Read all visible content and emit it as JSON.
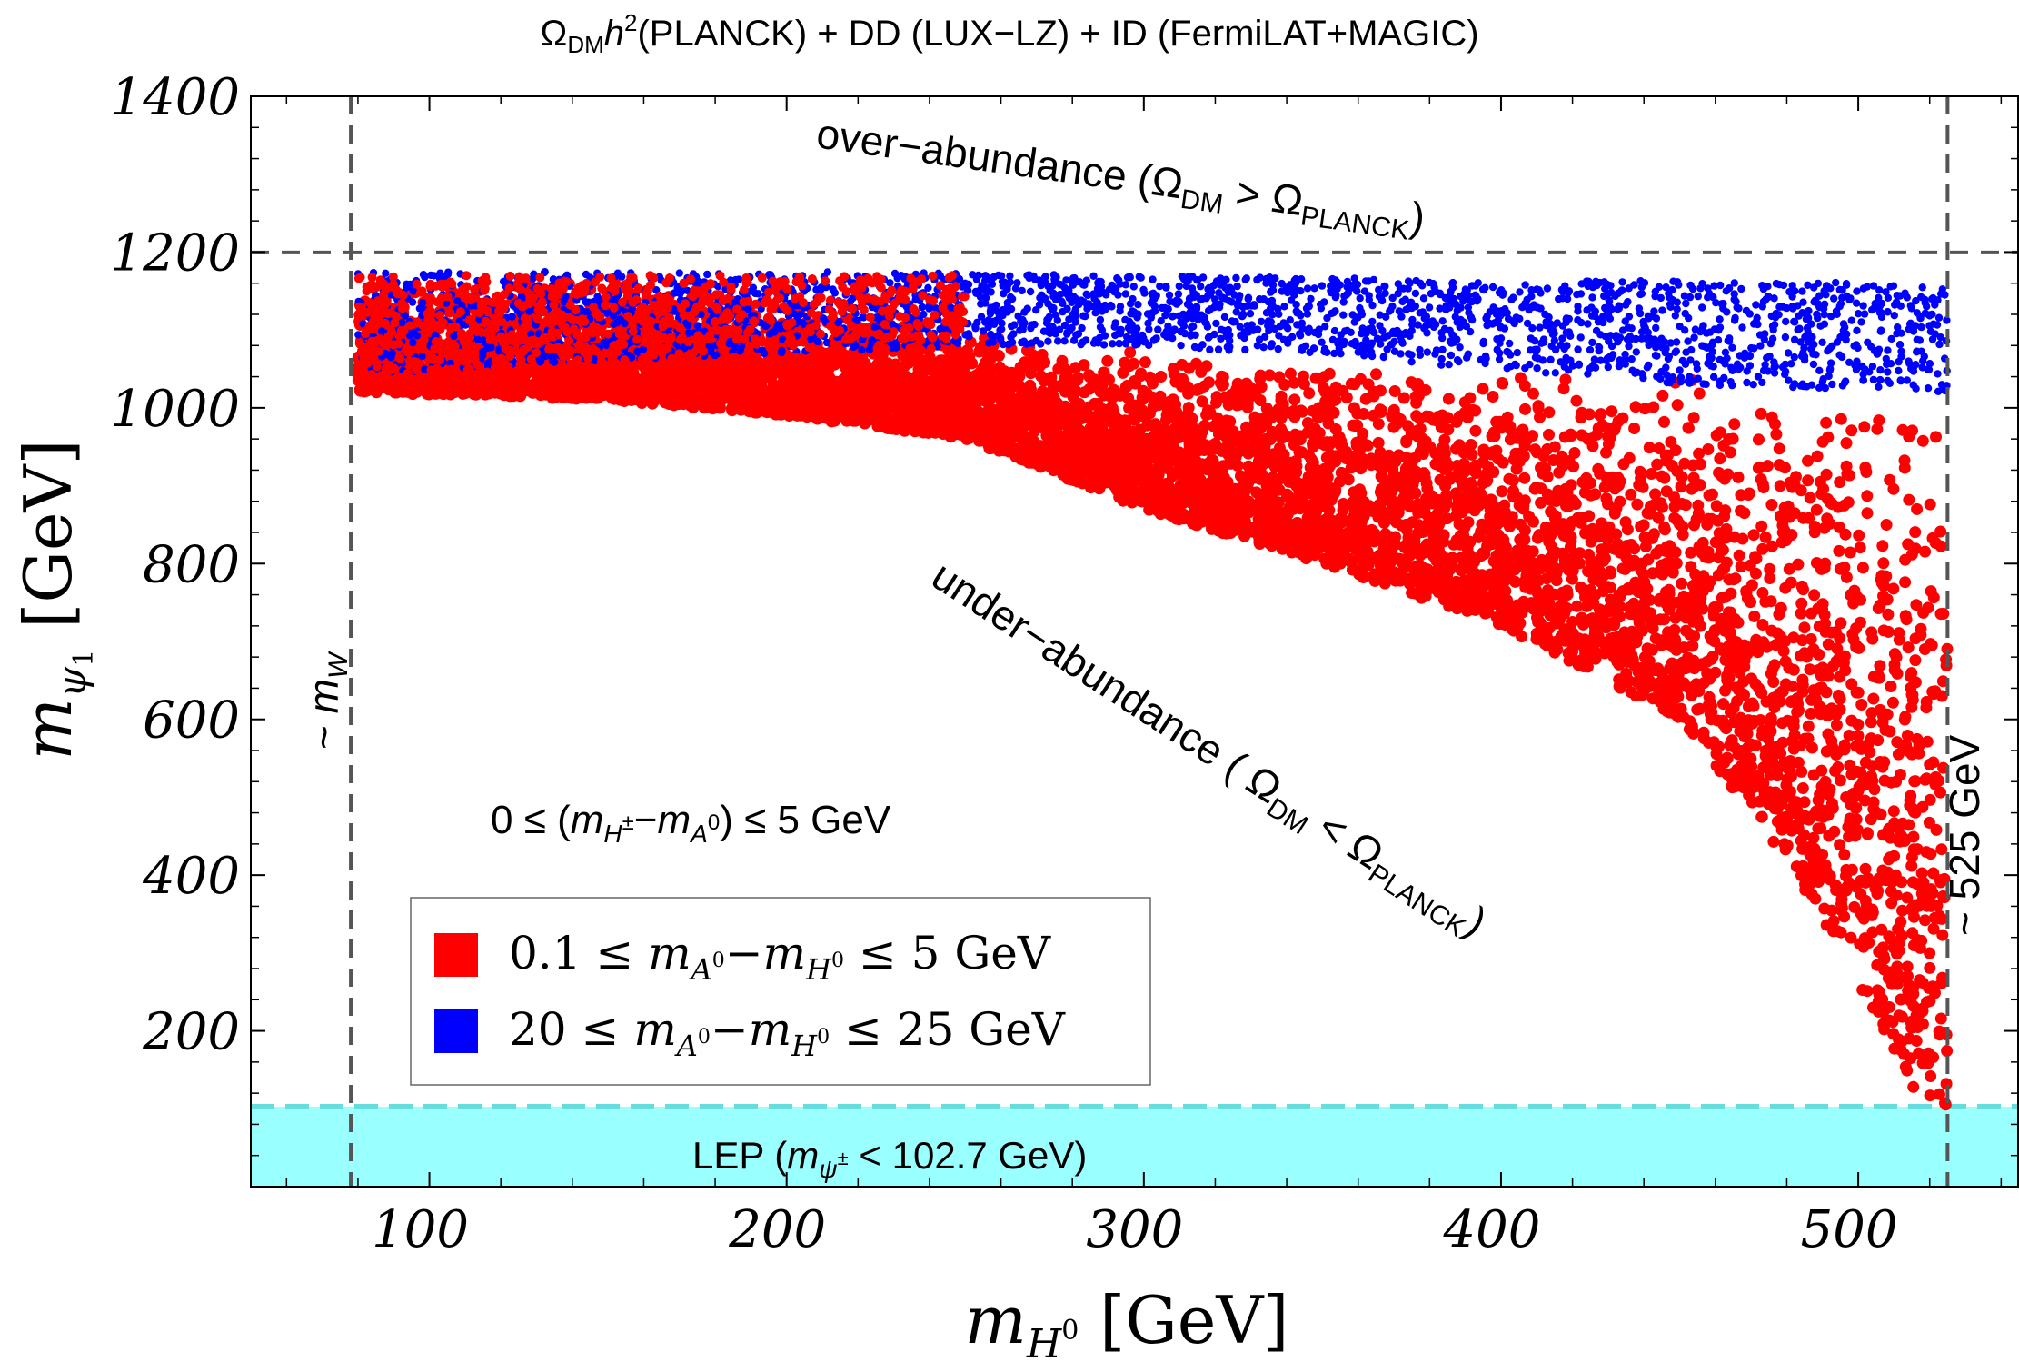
{
  "chart_data": {
    "type": "scatter",
    "title": "Ω_DM h²(PLANCK) + DD (LUX-LZ) + ID (FermiLAT+MAGIC)",
    "title_parts": {
      "omega": "Ω",
      "omega_sub": "DM",
      "h": "h",
      "h_sup": "2",
      "rest": "(PLANCK) + DD (LUX−LZ) + ID (FermiLAT+MAGIC)"
    },
    "xlabel": "m_H0 [GeV]",
    "xlabel_parts": {
      "m": "m",
      "sub": "H",
      "subsup": "0",
      "unit": " [GeV]"
    },
    "ylabel": "m_ψ1 [GeV]",
    "ylabel_parts": {
      "m": "m",
      "sub": "ψ",
      "subsub": "1",
      "unit": " [GeV]"
    },
    "xlim": [
      50,
      545
    ],
    "ylim": [
      0,
      1400
    ],
    "xticks": [
      100,
      200,
      300,
      400,
      500
    ],
    "yticks": [
      200,
      400,
      600,
      800,
      1000,
      1200,
      1400
    ],
    "xtick_labels": [
      "100",
      "200",
      "300",
      "400",
      "500"
    ],
    "ytick_labels": [
      "200",
      "400",
      "600",
      "800",
      "1000",
      "1200",
      "1400"
    ],
    "reference_lines": {
      "planck_y": 1200,
      "mw_x": 78,
      "upper_x": 525,
      "lep_y": 102.7
    },
    "annotations": {
      "over_abundance": {
        "text_main": "over−abundance (Ω",
        "sub1": "DM",
        "text_mid": " > Ω",
        "sub2": "PLANCK",
        "text_end": ")"
      },
      "under_abundance": {
        "text_main": "under−abundance ( Ω",
        "sub1": "DM",
        "text_mid": " < Ω",
        "sub2": "PLANCK",
        "text_end": ")"
      },
      "mw": {
        "tilde": "~ ",
        "m": "m",
        "sub": "W"
      },
      "upper": "~ 525 GeV",
      "constraint": {
        "prefix": "0 ≤ (",
        "m1": "m",
        "sub1": "H",
        "sup1": "±",
        "minus": "−",
        "m2": "m",
        "sub2": "A",
        "sup2": "0",
        "suffix": ") ≤ 5 GeV"
      },
      "lep": {
        "prefix": "LEP (",
        "m": "m",
        "sub": "ψ",
        "sup": "±",
        "suffix": " < 102.7 GeV)"
      }
    },
    "series": [
      {
        "name": "0.1 ≤ m_A0 − m_H0 ≤ 5 GeV",
        "color": "#ff0000",
        "legend": {
          "pre": "0.1 ≤ ",
          "m1": "m",
          "s1": "A",
          "p1": "0",
          "minus": "−",
          "m2": "m",
          "s2": "H",
          "p2": "0",
          "post": " ≤ 5 GeV"
        },
        "upper_envelope": [
          [
            80,
            1150
          ],
          [
            150,
            1170
          ],
          [
            250,
            1100
          ],
          [
            350,
            1050
          ],
          [
            450,
            1040
          ],
          [
            525,
            1010
          ]
        ],
        "lower_envelope": [
          [
            80,
            1020
          ],
          [
            150,
            1010
          ],
          [
            200,
            990
          ],
          [
            250,
            960
          ],
          [
            300,
            870
          ],
          [
            350,
            800
          ],
          [
            400,
            720
          ],
          [
            450,
            600
          ],
          [
            480,
            420
          ],
          [
            500,
            260
          ],
          [
            515,
            130
          ],
          [
            520,
            100
          ]
        ],
        "density": "dense"
      },
      {
        "name": "20 ≤ m_A0 − m_H0 ≤ 25 GeV",
        "color": "#0000ff",
        "legend": {
          "pre": "20 ≤ ",
          "m1": "m",
          "s1": "A",
          "p1": "0",
          "minus": "−",
          "m2": "m",
          "s2": "H",
          "p2": "0",
          "post": " ≤ 25 GeV"
        },
        "upper_envelope": [
          [
            80,
            1175
          ],
          [
            200,
            1175
          ],
          [
            300,
            1170
          ],
          [
            400,
            1165
          ],
          [
            525,
            1160
          ]
        ],
        "lower_envelope": [
          [
            80,
            1040
          ],
          [
            150,
            1060
          ],
          [
            200,
            1070
          ],
          [
            250,
            1080
          ],
          [
            300,
            1080
          ],
          [
            400,
            1050
          ],
          [
            450,
            1030
          ],
          [
            525,
            1020
          ]
        ],
        "density": "medium"
      }
    ],
    "colors": {
      "lep_band": "#99ffff",
      "lep_line": "#66dddd",
      "ref_line": "#555555",
      "axis": "#000000"
    }
  }
}
